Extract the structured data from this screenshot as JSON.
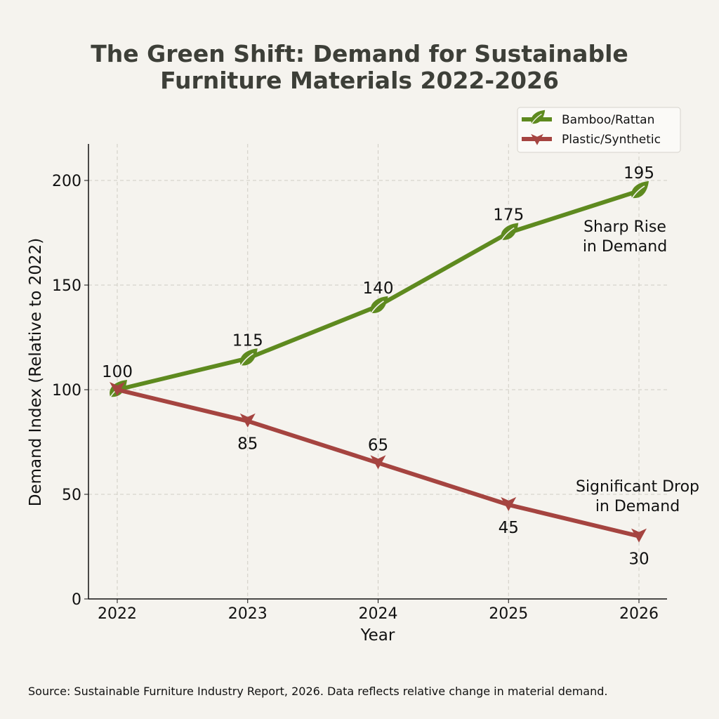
{
  "chart_data": {
    "type": "line",
    "title": "The Green Shift: Demand for Sustainable Furniture Materials 2022-2026",
    "title_lines": [
      "The Green Shift: Demand for Sustainable",
      "Furniture Materials 2022-2026"
    ],
    "xlabel": "Year",
    "ylabel": "Demand Index (Relative to 2022)",
    "x": [
      2022,
      2023,
      2024,
      2025,
      2026
    ],
    "x_tick_labels": [
      "2022",
      "2023",
      "2024",
      "2025",
      "2026"
    ],
    "y_ticks": [
      0,
      50,
      100,
      150,
      200
    ],
    "y_tick_labels": [
      "0",
      "50",
      "100",
      "150",
      "200"
    ],
    "ylim": [
      0,
      217
    ],
    "grid": true,
    "legend_position": "top-right",
    "series": [
      {
        "name": "Bamboo/Rattan",
        "values": [
          100,
          115,
          140,
          175,
          195
        ],
        "labels": [
          "100",
          "115",
          "140",
          "175",
          "195"
        ],
        "color": "#5e8a1f",
        "marker": "leaf-icon"
      },
      {
        "name": "Plastic/Synthetic",
        "values": [
          100,
          85,
          65,
          45,
          30
        ],
        "labels": [
          "",
          "85",
          "65",
          "45",
          "30"
        ],
        "color": "#a54440",
        "marker": "triangle-down-icon"
      }
    ],
    "annotations": [
      {
        "lines": [
          "Sharp Rise",
          "in Demand"
        ]
      },
      {
        "lines": [
          "Significant Drop",
          "in Demand"
        ]
      }
    ],
    "source": "Source: Sustainable Furniture Industry Report, 2026. Data reflects relative change in material demand."
  }
}
